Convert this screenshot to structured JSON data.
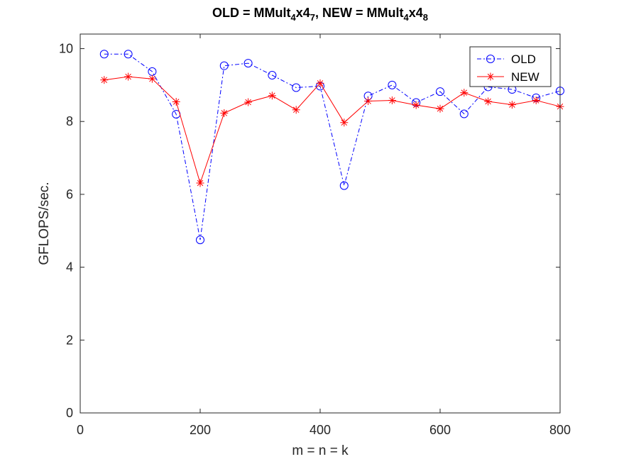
{
  "chart_data": {
    "type": "line",
    "title": {
      "parts": [
        {
          "text": "OLD = MMult",
          "sub": false
        },
        {
          "text": "4",
          "sub": true
        },
        {
          "text": "x4",
          "sub": false
        },
        {
          "text": "7",
          "sub": true
        },
        {
          "text": ", NEW = MMult",
          "sub": false
        },
        {
          "text": "4",
          "sub": true
        },
        {
          "text": "x4",
          "sub": false
        },
        {
          "text": "8",
          "sub": true
        }
      ]
    },
    "xlabel": "m = n = k",
    "ylabel": "GFLOPS/sec.",
    "xlim": [
      0,
      800
    ],
    "ylim": [
      0,
      10.4
    ],
    "xticks": [
      0,
      200,
      400,
      600,
      800
    ],
    "yticks": [
      0,
      2,
      4,
      6,
      8,
      10
    ],
    "grid": false,
    "legend_position": "top-right",
    "x": [
      40,
      80,
      120,
      160,
      200,
      240,
      280,
      320,
      360,
      400,
      440,
      480,
      520,
      560,
      600,
      640,
      680,
      720,
      760,
      800
    ],
    "series": [
      {
        "name": "OLD",
        "color": "#0000ff",
        "line_style": "dash-dot",
        "marker": "circle",
        "values": [
          9.85,
          9.85,
          9.37,
          8.2,
          4.75,
          9.53,
          9.6,
          9.27,
          8.93,
          8.97,
          6.24,
          8.7,
          9.0,
          8.52,
          8.82,
          8.21,
          8.95,
          8.88,
          8.65,
          8.84
        ]
      },
      {
        "name": "NEW",
        "color": "#ff0000",
        "line_style": "solid",
        "marker": "asterisk",
        "values": [
          9.14,
          9.23,
          9.17,
          8.54,
          6.31,
          8.23,
          8.53,
          8.71,
          8.32,
          9.05,
          7.97,
          8.56,
          8.58,
          8.45,
          8.35,
          8.79,
          8.55,
          8.46,
          8.58,
          8.41
        ]
      }
    ]
  }
}
